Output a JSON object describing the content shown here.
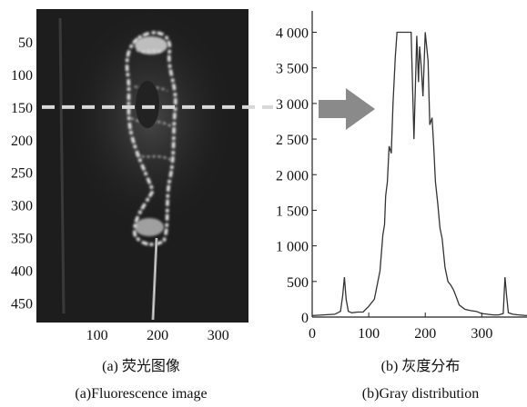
{
  "panel_a": {
    "caption_cn": "(a) 荧光图像",
    "caption_en": "(a)Fluorescence image",
    "y_ticks": [
      "50",
      "100",
      "150",
      "200",
      "250",
      "300",
      "350",
      "400",
      "450"
    ],
    "x_ticks": [
      "100",
      "200",
      "300"
    ],
    "scan_line_y": 150
  },
  "panel_b": {
    "caption_cn": "(b) 灰度分布",
    "caption_en": "(b)Gray distribution"
  },
  "chart_data": [
    {
      "type": "heatmap",
      "title": "",
      "description_of_content": "fluorescence image",
      "x_ticks": [
        100,
        200,
        300
      ],
      "y_ticks": [
        50,
        100,
        150,
        200,
        250,
        300,
        350,
        400,
        450
      ],
      "xlim": [
        0,
        350
      ],
      "ylim": [
        0,
        480
      ],
      "y_inverted": true,
      "scan_line_y": 150
    },
    {
      "type": "line",
      "title": "",
      "xlabel": "",
      "ylabel": "",
      "xlim": [
        0,
        380
      ],
      "ylim": [
        0,
        4300
      ],
      "x_ticks": [
        0,
        100,
        200,
        300
      ],
      "y_ticks": [
        0,
        500,
        1000,
        1500,
        2000,
        2500,
        3000,
        3500,
        4000
      ],
      "y_tick_labels": [
        "0",
        "500",
        "1 000",
        "1 500",
        "2 000",
        "2 500",
        "3 000",
        "3 500",
        "4 000"
      ],
      "grid": false,
      "series": [
        {
          "x": [
            0,
            20,
            40,
            50,
            54,
            57,
            60,
            64,
            70,
            80,
            90,
            100,
            110,
            115,
            120,
            125,
            128,
            130,
            133,
            136,
            140,
            143,
            147,
            150,
            153,
            156,
            160,
            165,
            170,
            175,
            180,
            185,
            188,
            190,
            193,
            196,
            200,
            205,
            208,
            212,
            215,
            218,
            222,
            226,
            230,
            235,
            240,
            245,
            250,
            255,
            260,
            270,
            280,
            290,
            300,
            310,
            320,
            330,
            338,
            341,
            344,
            347,
            355,
            365,
            380
          ],
          "y": [
            20,
            30,
            40,
            80,
            300,
            560,
            250,
            80,
            60,
            70,
            70,
            150,
            250,
            450,
            650,
            1150,
            1300,
            1700,
            1900,
            2400,
            2300,
            3000,
            3650,
            4000,
            4000,
            4000,
            4000,
            4000,
            4000,
            4000,
            2500,
            3950,
            3300,
            3800,
            3500,
            3100,
            4000,
            3600,
            2700,
            2800,
            2400,
            1900,
            1600,
            1250,
            1100,
            700,
            500,
            450,
            380,
            280,
            170,
            110,
            90,
            80,
            50,
            40,
            30,
            30,
            50,
            560,
            300,
            60,
            40,
            30,
            20
          ]
        }
      ]
    }
  ]
}
